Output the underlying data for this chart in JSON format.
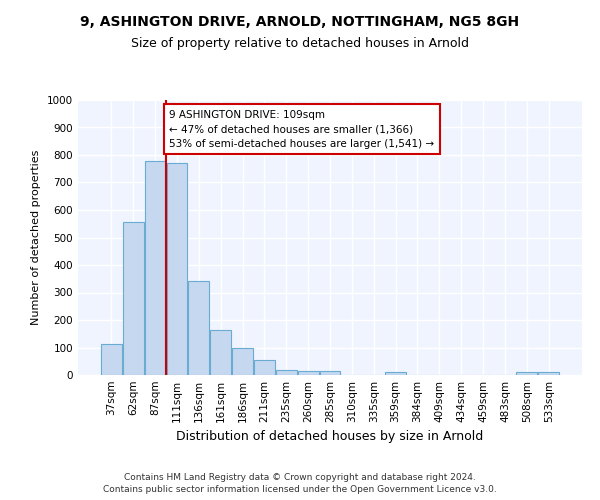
{
  "title1": "9, ASHINGTON DRIVE, ARNOLD, NOTTINGHAM, NG5 8GH",
  "title2": "Size of property relative to detached houses in Arnold",
  "xlabel": "Distribution of detached houses by size in Arnold",
  "ylabel": "Number of detached properties",
  "bar_labels": [
    "37sqm",
    "62sqm",
    "87sqm",
    "111sqm",
    "136sqm",
    "161sqm",
    "186sqm",
    "211sqm",
    "235sqm",
    "260sqm",
    "285sqm",
    "310sqm",
    "335sqm",
    "359sqm",
    "384sqm",
    "409sqm",
    "434sqm",
    "459sqm",
    "483sqm",
    "508sqm",
    "533sqm"
  ],
  "bar_values": [
    112,
    558,
    778,
    770,
    343,
    165,
    98,
    54,
    20,
    14,
    14,
    0,
    0,
    11,
    0,
    0,
    0,
    0,
    0,
    10,
    10
  ],
  "bar_color": "#c5d8f0",
  "bar_edge_color": "#6aabd2",
  "vline_color": "#cc0000",
  "ylim": [
    0,
    1000
  ],
  "yticks": [
    0,
    100,
    200,
    300,
    400,
    500,
    600,
    700,
    800,
    900,
    1000
  ],
  "annotation_text": "9 ASHINGTON DRIVE: 109sqm\n← 47% of detached houses are smaller (1,366)\n53% of semi-detached houses are larger (1,541) →",
  "annotation_box_facecolor": "#ffffff",
  "annotation_box_edgecolor": "#cc0000",
  "footer1": "Contains HM Land Registry data © Crown copyright and database right 2024.",
  "footer2": "Contains public sector information licensed under the Open Government Licence v3.0.",
  "bg_color": "#ffffff",
  "plot_bg_color": "#f0f4ff",
  "grid_color": "#ffffff",
  "title1_fontsize": 10,
  "title2_fontsize": 9,
  "ylabel_fontsize": 8,
  "xlabel_fontsize": 9,
  "tick_fontsize": 7.5,
  "footer_fontsize": 6.5
}
